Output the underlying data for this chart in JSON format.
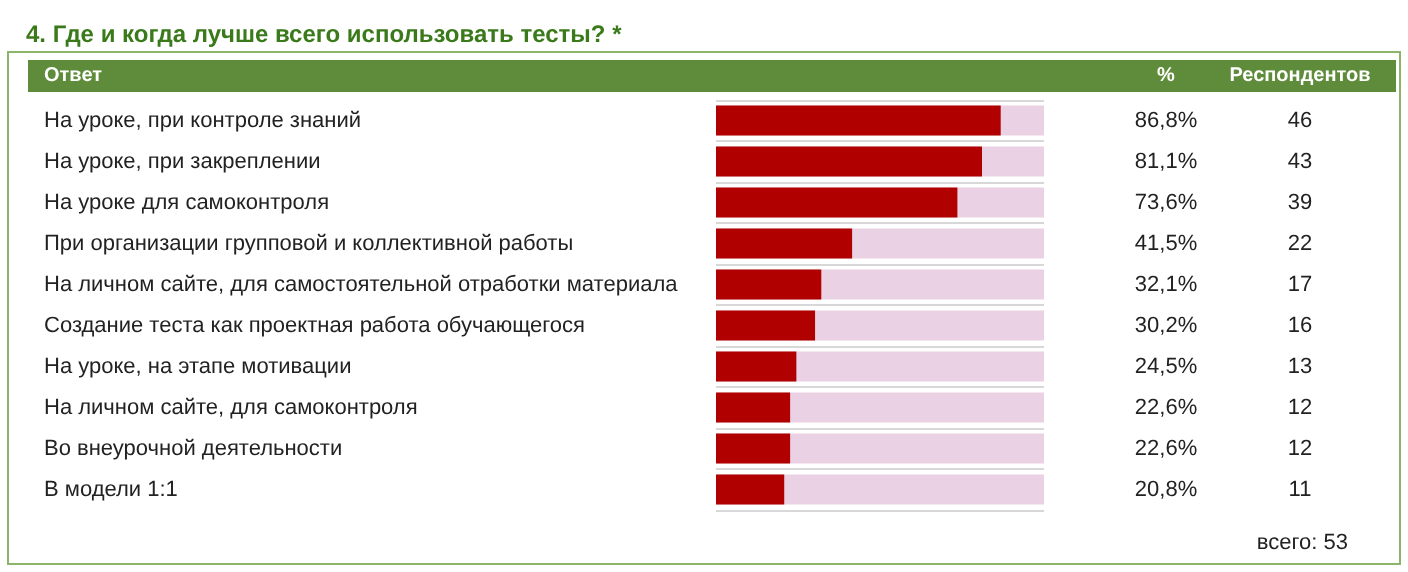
{
  "chart_data": {
    "type": "bar",
    "orientation": "horizontal",
    "title": "4. Где и когда лучше всего использовать тесты? *",
    "ylabel": "Ответ",
    "categories": [
      "На уроке, при контроле знаний",
      "На уроке, при закреплении",
      "На уроке для самоконтроля",
      "При организации групповой и коллективной работы",
      "На личном сайте, для самостоятельной отработки материала",
      "Создание теста как проектная работа обучающегося",
      "На уроке, на этапе мотивации",
      "На личном сайте, для самоконтроля",
      "Во внеурочной деятельности",
      "В модели 1:1"
    ],
    "values": [
      86.8,
      81.1,
      73.6,
      41.5,
      32.1,
      30.2,
      24.5,
      22.6,
      22.6,
      20.8
    ],
    "value_labels": [
      "86,8%",
      "81,1%",
      "73,6%",
      "41,5%",
      "32,1%",
      "30,2%",
      "24,5%",
      "22,6%",
      "22,6%",
      "20,8%"
    ],
    "color": "#b00000",
    "xlim": [
      0,
      100
    ],
    "tick_labels": "y",
    "grid": "y",
    "annotations": [
      "%",
      "Респондентов",
      "46",
      "43",
      "39",
      "22",
      "17",
      "16",
      "13",
      "12",
      "12",
      "11",
      "всего: 53"
    ]
  }
}
